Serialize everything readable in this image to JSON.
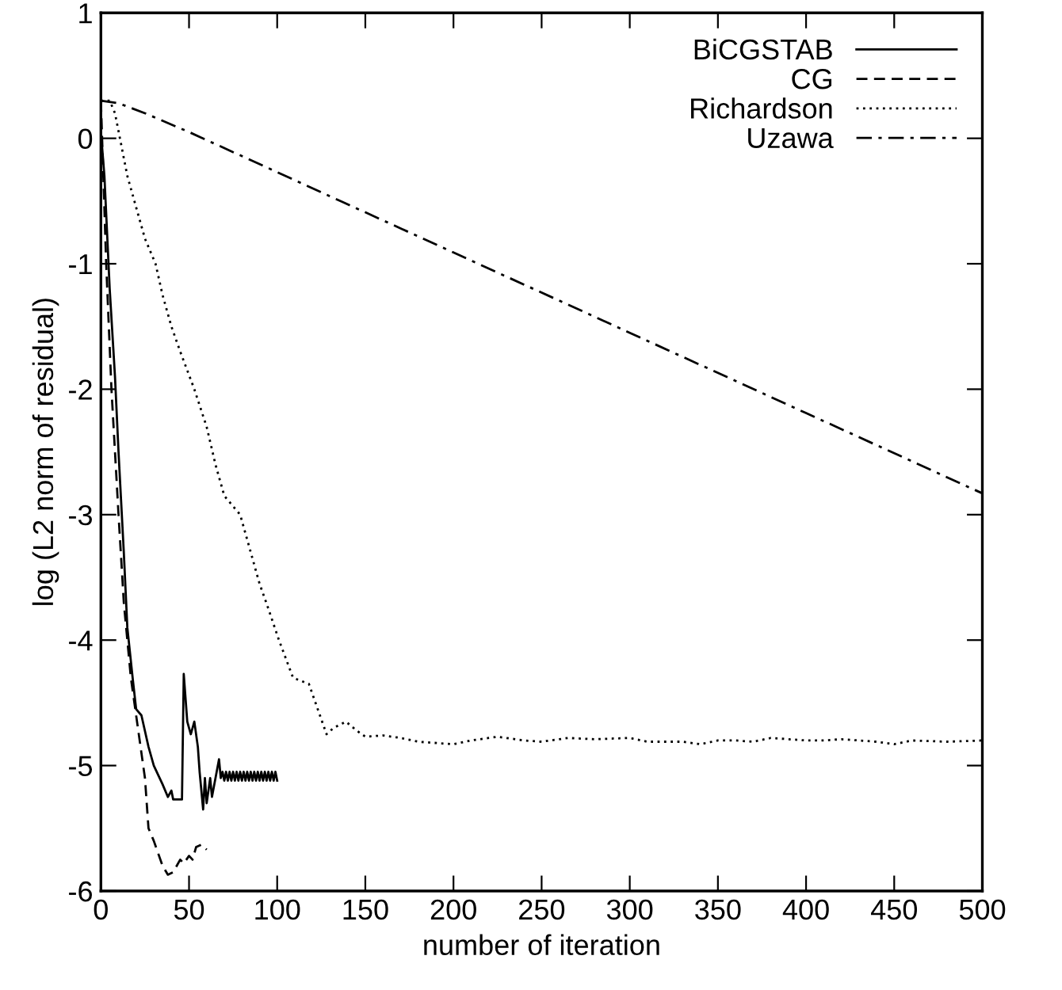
{
  "chart_data": {
    "type": "line",
    "xlabel": "number of iteration",
    "ylabel": "log (L2 norm of residual)",
    "xlim": [
      0,
      500
    ],
    "ylim": [
      -6,
      1
    ],
    "xticks": [
      0,
      50,
      100,
      150,
      200,
      250,
      300,
      350,
      400,
      450,
      500
    ],
    "yticks": [
      -6,
      -5,
      -4,
      -3,
      -2,
      -1,
      0,
      1
    ],
    "grid": false,
    "legend": "top right",
    "marker": "none",
    "series": [
      {
        "name": "BiCGSTAB",
        "color": "#000000",
        "line_style": "solid",
        "x": [
          0,
          2,
          5,
          8,
          10,
          13,
          15,
          18,
          20,
          23,
          27,
          30,
          35,
          38,
          40,
          41,
          46,
          47,
          49,
          51,
          53,
          55,
          56,
          58,
          59,
          60,
          62,
          63,
          65,
          67,
          68,
          69,
          70,
          71,
          72,
          73,
          74,
          75,
          76,
          77,
          78,
          79,
          80,
          81,
          82,
          83,
          84,
          85,
          86,
          87,
          88,
          89,
          90,
          91,
          92,
          93,
          94,
          95,
          96,
          97,
          98,
          99,
          100
        ],
        "values": [
          0.05,
          -0.3,
          -1.2,
          -1.9,
          -2.5,
          -3.3,
          -3.9,
          -4.3,
          -4.55,
          -4.6,
          -4.85,
          -5.0,
          -5.15,
          -5.25,
          -5.2,
          -5.27,
          -5.27,
          -4.27,
          -4.65,
          -4.75,
          -4.65,
          -4.85,
          -5.05,
          -5.35,
          -5.1,
          -5.3,
          -5.1,
          -5.25,
          -5.1,
          -4.95,
          -5.1,
          -5.05,
          -5.12,
          -5.05,
          -5.12,
          -5.05,
          -5.12,
          -5.05,
          -5.12,
          -5.05,
          -5.12,
          -5.05,
          -5.12,
          -5.05,
          -5.12,
          -5.05,
          -5.12,
          -5.05,
          -5.12,
          -5.05,
          -5.12,
          -5.05,
          -5.12,
          -5.05,
          -5.12,
          -5.05,
          -5.12,
          -5.05,
          -5.12,
          -5.05,
          -5.12,
          -5.05,
          -5.12
        ]
      },
      {
        "name": "CG",
        "color": "#000000",
        "line_style": "dashed",
        "x": [
          0,
          3,
          6,
          10,
          13,
          17,
          20,
          25,
          27,
          30,
          35,
          38,
          41,
          45,
          47,
          50,
          52,
          54,
          57,
          60
        ],
        "values": [
          0.3,
          -1.0,
          -2.0,
          -3.0,
          -3.7,
          -4.3,
          -4.6,
          -5.1,
          -5.5,
          -5.6,
          -5.8,
          -5.87,
          -5.85,
          -5.75,
          -5.78,
          -5.72,
          -5.75,
          -5.65,
          -5.63,
          -5.67
        ]
      },
      {
        "name": "Richardson",
        "color": "#000000",
        "line_style": "dotted",
        "x": [
          0,
          5,
          8,
          15,
          20,
          25,
          31,
          35,
          40,
          45,
          53,
          60,
          65,
          70,
          79,
          85,
          90,
          95,
          101,
          105,
          109,
          118,
          128,
          132,
          139,
          145,
          150,
          160,
          170,
          180,
          200,
          210,
          225,
          240,
          250,
          265,
          280,
          300,
          310,
          330,
          340,
          350,
          360,
          370,
          380,
          400,
          410,
          420,
          440,
          450,
          460,
          480,
          500
        ],
        "values": [
          0.3,
          0.3,
          0.2,
          -0.3,
          -0.55,
          -0.8,
          -1.0,
          -1.25,
          -1.5,
          -1.7,
          -2.0,
          -2.3,
          -2.6,
          -2.85,
          -3.0,
          -3.3,
          -3.55,
          -3.75,
          -4.0,
          -4.15,
          -4.3,
          -4.35,
          -4.75,
          -4.7,
          -4.65,
          -4.72,
          -4.77,
          -4.76,
          -4.78,
          -4.81,
          -4.83,
          -4.8,
          -4.77,
          -4.8,
          -4.81,
          -4.78,
          -4.79,
          -4.78,
          -4.81,
          -4.81,
          -4.83,
          -4.8,
          -4.8,
          -4.81,
          -4.78,
          -4.8,
          -4.8,
          -4.79,
          -4.81,
          -4.83,
          -4.8,
          -4.81,
          -4.8
        ]
      },
      {
        "name": "Uzawa",
        "color": "#000000",
        "line_style": "dashdot",
        "x": [
          0,
          10,
          25,
          50,
          100,
          200,
          300,
          400,
          500
        ],
        "values": [
          0.3,
          0.28,
          0.2,
          0.05,
          -0.27,
          -0.91,
          -1.55,
          -2.19,
          -2.83
        ]
      }
    ]
  }
}
